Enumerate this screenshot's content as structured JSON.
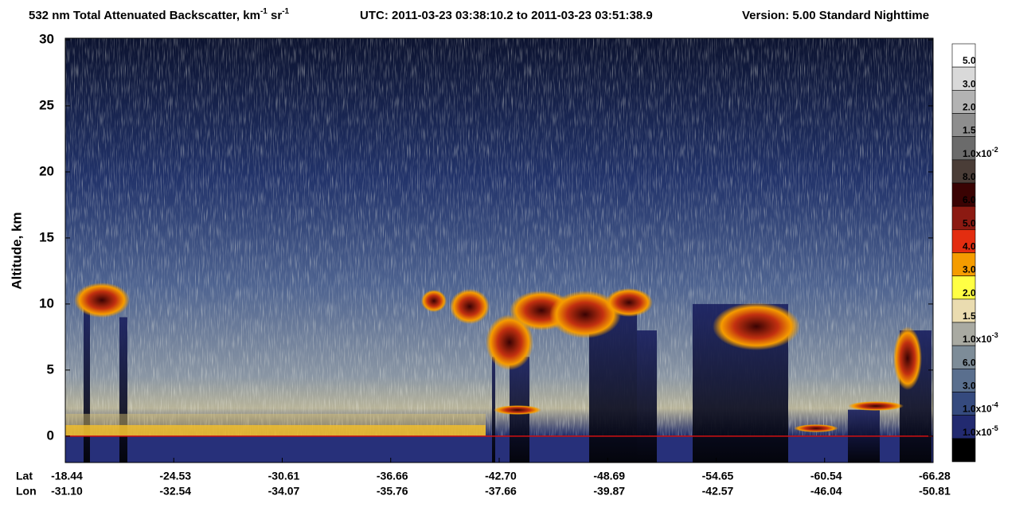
{
  "chart_data": {
    "type": "curtain",
    "title": {
      "main": "532 nm Total Attenuated Backscatter, km",
      "main_sup": "-1",
      "unit2": " sr",
      "unit2_sup": "-1",
      "utc": "UTC:  2011-03-23 03:38:10.2  to  2011-03-23 03:51:38.9",
      "version": "Version: 5.00  Standard  Nighttime"
    },
    "y_label": "Altitude, km",
    "ylim": [
      -2,
      30
    ],
    "yticks": [
      0,
      5,
      10,
      15,
      20,
      25,
      30
    ],
    "x_row_labels": [
      "Lat",
      "Lon"
    ],
    "lat": [
      "-18.44",
      "-24.53",
      "-30.61",
      "-36.66",
      "-42.70",
      "-48.69",
      "-54.65",
      "-60.54",
      "-66.28"
    ],
    "lon": [
      "-31.10",
      "-32.54",
      "-34.07",
      "-35.76",
      "-37.66",
      "-39.87",
      "-42.57",
      "-46.04",
      "-50.81"
    ],
    "colorbar": {
      "colors": [
        "#ffffff",
        "#d9d9d9",
        "#b3b3b3",
        "#8e8e8e",
        "#6b6b6b",
        "#4a3d37",
        "#3a0303",
        "#8c1a12",
        "#e32d10",
        "#f59c00",
        "#ffff44",
        "#eadcb0",
        "#a9aaa2",
        "#7d8c98",
        "#5a6f8e",
        "#354a7e",
        "#222a70",
        "#000000"
      ],
      "labels": [
        {
          "text": "5.0"
        },
        {
          "text": "3.0"
        },
        {
          "text": "2.0"
        },
        {
          "text": "1.5"
        },
        {
          "text": "1.0x10",
          "sup": "-2"
        },
        {
          "text": "8.0"
        },
        {
          "text": "6.0"
        },
        {
          "text": "5.0"
        },
        {
          "text": "4.0"
        },
        {
          "text": "3.0"
        },
        {
          "text": "2.0"
        },
        {
          "text": "1.5"
        },
        {
          "text": "1.0x10",
          "sup": "-3"
        },
        {
          "text": "6.0"
        },
        {
          "text": "3.0"
        },
        {
          "text": "1.0x10",
          "sup": "-4"
        },
        {
          "text": "1.0x10",
          "sup": "-5"
        }
      ]
    }
  }
}
